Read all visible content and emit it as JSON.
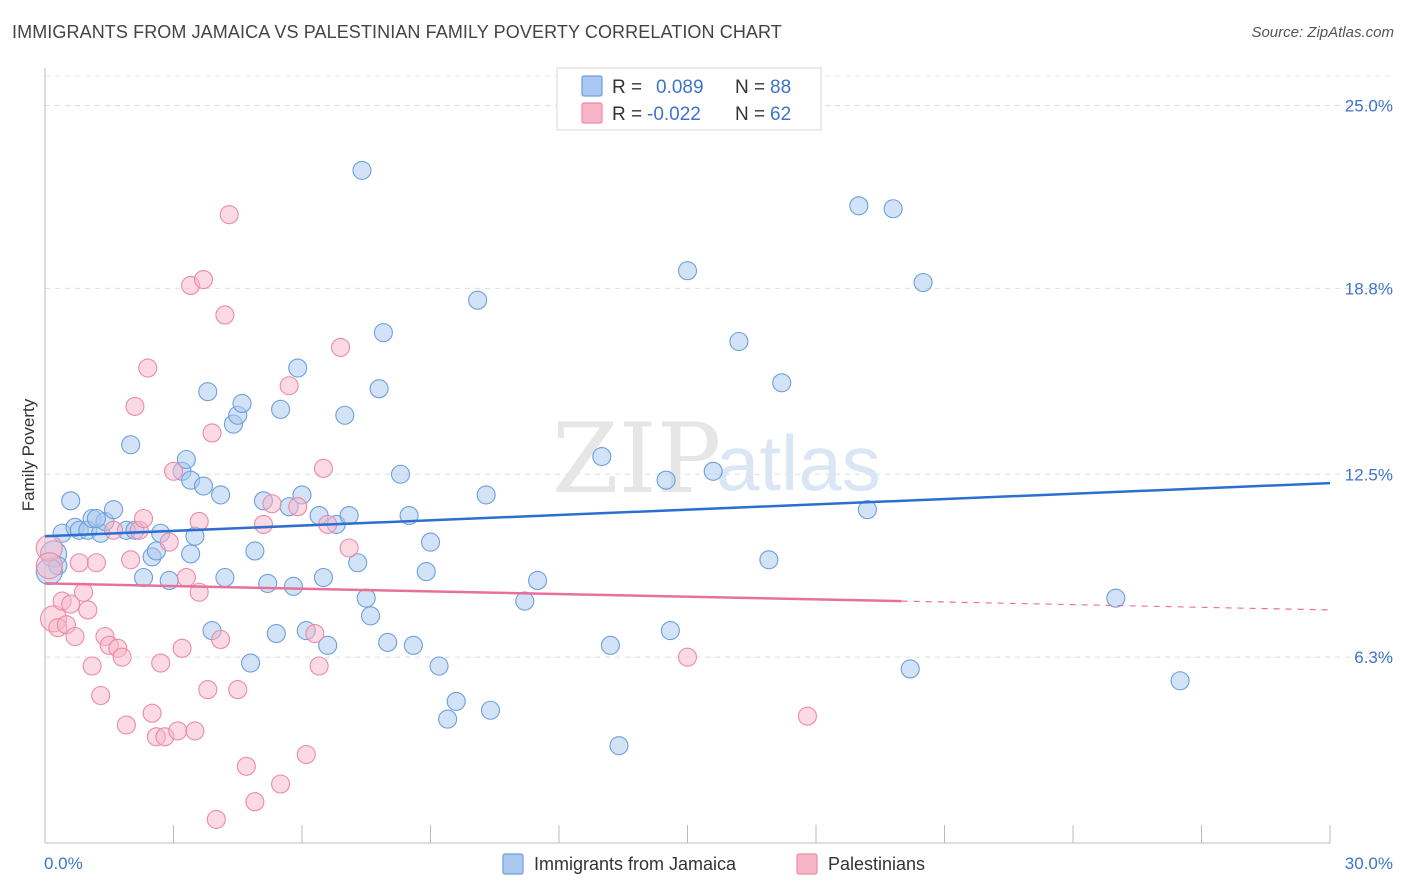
{
  "title": "IMMIGRANTS FROM JAMAICA VS PALESTINIAN FAMILY POVERTY CORRELATION CHART",
  "source": "Source: ZipAtlas.com",
  "watermark": {
    "zip": "ZIP",
    "atlas": "atlas"
  },
  "legend": {
    "r_label": "R =",
    "n_label": "N =",
    "rows": [
      {
        "r": "0.089",
        "n": "88",
        "color": "#a8c8f0"
      },
      {
        "r": "-0.022",
        "n": "62",
        "color": "#f7b6c8"
      }
    ]
  },
  "chart_data": {
    "type": "scatter",
    "ylabel": "Family Poverty",
    "xlim": [
      0,
      30
    ],
    "ylim": [
      0,
      26
    ],
    "x_tick_labels": [
      "0.0%",
      "30.0%"
    ],
    "y_ticks": [
      {
        "value": 6.3,
        "label": "6.3%"
      },
      {
        "value": 12.5,
        "label": "12.5%"
      },
      {
        "value": 18.8,
        "label": "18.8%"
      },
      {
        "value": 25.0,
        "label": "25.0%"
      }
    ],
    "grid": true,
    "series": [
      {
        "name": "Immigrants from Jamaica",
        "color": "#a8c8f0",
        "stroke": "#6d9fdc",
        "trend": {
          "x0": 0,
          "y0": 10.4,
          "x1": 30,
          "y1": 12.2,
          "color": "#2d6fcf",
          "dashed_from": null
        },
        "points": [
          [
            0.2,
            9.8
          ],
          [
            0.3,
            9.4
          ],
          [
            0.4,
            10.5
          ],
          [
            0.6,
            11.6
          ],
          [
            0.7,
            10.7
          ],
          [
            0.8,
            10.6
          ],
          [
            1.0,
            10.6
          ],
          [
            1.1,
            11.0
          ],
          [
            1.3,
            10.5
          ],
          [
            1.4,
            10.9
          ],
          [
            1.6,
            11.3
          ],
          [
            1.9,
            10.6
          ],
          [
            2.1,
            10.6
          ],
          [
            2.0,
            13.5
          ],
          [
            2.3,
            9.0
          ],
          [
            2.5,
            9.7
          ],
          [
            2.6,
            9.9
          ],
          [
            2.9,
            8.9
          ],
          [
            3.2,
            12.6
          ],
          [
            3.3,
            13.0
          ],
          [
            3.4,
            12.3
          ],
          [
            3.5,
            10.4
          ],
          [
            3.4,
            9.8
          ],
          [
            3.7,
            12.1
          ],
          [
            3.8,
            15.3
          ],
          [
            3.9,
            7.2
          ],
          [
            4.1,
            11.8
          ],
          [
            4.2,
            9.0
          ],
          [
            4.4,
            14.2
          ],
          [
            4.5,
            14.5
          ],
          [
            4.6,
            14.9
          ],
          [
            4.8,
            6.1
          ],
          [
            4.9,
            9.9
          ],
          [
            5.1,
            11.6
          ],
          [
            5.2,
            8.8
          ],
          [
            5.4,
            7.1
          ],
          [
            5.5,
            14.7
          ],
          [
            5.7,
            11.4
          ],
          [
            5.8,
            8.7
          ],
          [
            5.9,
            16.1
          ],
          [
            6.0,
            11.8
          ],
          [
            6.1,
            7.2
          ],
          [
            6.4,
            11.1
          ],
          [
            6.5,
            9.0
          ],
          [
            6.6,
            6.7
          ],
          [
            6.8,
            10.8
          ],
          [
            7.0,
            14.5
          ],
          [
            7.1,
            11.1
          ],
          [
            7.3,
            9.5
          ],
          [
            7.5,
            8.3
          ],
          [
            7.6,
            7.7
          ],
          [
            7.8,
            15.4
          ],
          [
            7.9,
            17.3
          ],
          [
            8.0,
            6.8
          ],
          [
            8.3,
            12.5
          ],
          [
            8.6,
            6.7
          ],
          [
            8.5,
            11.1
          ],
          [
            8.9,
            9.2
          ],
          [
            9.0,
            10.2
          ],
          [
            9.2,
            6.0
          ],
          [
            9.4,
            4.2
          ],
          [
            9.6,
            4.8
          ],
          [
            10.1,
            18.4
          ],
          [
            10.3,
            11.8
          ],
          [
            10.4,
            4.5
          ],
          [
            11.2,
            8.2
          ],
          [
            11.5,
            8.9
          ],
          [
            13.0,
            13.1
          ],
          [
            13.2,
            6.7
          ],
          [
            13.4,
            3.3
          ],
          [
            14.5,
            12.3
          ],
          [
            14.6,
            7.2
          ],
          [
            15.0,
            19.4
          ],
          [
            15.6,
            12.6
          ],
          [
            16.2,
            17.0
          ],
          [
            16.9,
            9.6
          ],
          [
            17.2,
            15.6
          ],
          [
            19.0,
            21.6
          ],
          [
            19.2,
            11.3
          ],
          [
            19.8,
            21.5
          ],
          [
            20.2,
            5.9
          ],
          [
            20.5,
            19.0
          ],
          [
            25.0,
            8.3
          ],
          [
            26.5,
            5.5
          ],
          [
            7.4,
            22.8
          ],
          [
            0.1,
            9.2
          ],
          [
            1.2,
            11.0
          ],
          [
            2.7,
            10.5
          ]
        ]
      },
      {
        "name": "Palestinians",
        "color": "#f7b6c8",
        "stroke": "#ec8aa8",
        "trend": {
          "x0": 0,
          "y0": 8.8,
          "x1": 30,
          "y1": 7.9,
          "color": "#e8709a",
          "dashed_from": 20
        },
        "points": [
          [
            0.1,
            10.0
          ],
          [
            0.2,
            7.6
          ],
          [
            0.3,
            7.3
          ],
          [
            0.4,
            8.2
          ],
          [
            0.5,
            7.4
          ],
          [
            0.6,
            8.1
          ],
          [
            0.7,
            7.0
          ],
          [
            0.8,
            9.5
          ],
          [
            0.9,
            8.5
          ],
          [
            1.0,
            7.9
          ],
          [
            1.1,
            6.0
          ],
          [
            1.2,
            9.5
          ],
          [
            1.3,
            5.0
          ],
          [
            1.4,
            7.0
          ],
          [
            1.5,
            6.7
          ],
          [
            1.6,
            10.6
          ],
          [
            1.7,
            6.6
          ],
          [
            1.8,
            6.3
          ],
          [
            1.9,
            4.0
          ],
          [
            2.0,
            9.6
          ],
          [
            2.1,
            14.8
          ],
          [
            2.2,
            10.6
          ],
          [
            2.3,
            11.0
          ],
          [
            2.4,
            16.1
          ],
          [
            2.5,
            4.4
          ],
          [
            2.6,
            3.6
          ],
          [
            2.7,
            6.1
          ],
          [
            2.8,
            3.6
          ],
          [
            2.9,
            10.2
          ],
          [
            3.0,
            12.6
          ],
          [
            3.1,
            3.8
          ],
          [
            3.2,
            6.6
          ],
          [
            3.3,
            9.0
          ],
          [
            3.4,
            18.9
          ],
          [
            3.5,
            3.8
          ],
          [
            3.6,
            10.9
          ],
          [
            3.6,
            8.5
          ],
          [
            3.7,
            19.1
          ],
          [
            3.8,
            5.2
          ],
          [
            3.9,
            13.9
          ],
          [
            4.0,
            0.8
          ],
          [
            4.1,
            6.9
          ],
          [
            4.2,
            17.9
          ],
          [
            4.3,
            21.3
          ],
          [
            4.5,
            5.2
          ],
          [
            4.7,
            2.6
          ],
          [
            4.9,
            1.4
          ],
          [
            5.1,
            10.8
          ],
          [
            5.3,
            11.5
          ],
          [
            5.5,
            2.0
          ],
          [
            5.7,
            15.5
          ],
          [
            5.9,
            11.4
          ],
          [
            6.1,
            3.0
          ],
          [
            6.3,
            7.1
          ],
          [
            6.4,
            6.0
          ],
          [
            6.5,
            12.7
          ],
          [
            6.6,
            10.8
          ],
          [
            6.9,
            16.8
          ],
          [
            7.1,
            10.0
          ],
          [
            15.0,
            6.3
          ],
          [
            17.8,
            4.3
          ],
          [
            0.1,
            9.4
          ]
        ]
      }
    ]
  }
}
